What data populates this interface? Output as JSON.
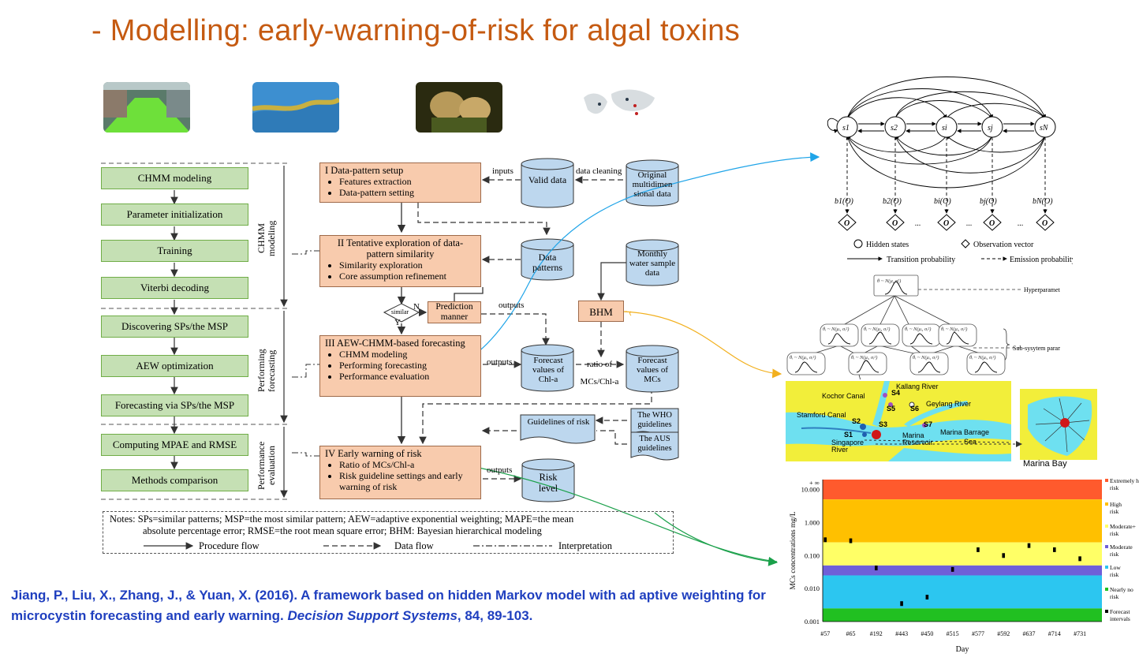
{
  "slide": {
    "title": "- Modelling: early-warning-of-risk for algal toxins"
  },
  "workflow": {
    "green_steps": [
      "CHMM modeling",
      "Parameter initialization",
      "Training",
      "Viterbi decoding",
      "Discovering SPs/the MSP",
      "AEW optimization",
      "Forecasting via SPs/the MSP",
      "Computing MPAE and RMSE",
      "Methods comparison"
    ],
    "side_labels": {
      "chmm": "CHMM modeling",
      "forecasting": "Performing forecasting",
      "evaluation": "Performance evaluation"
    },
    "stages": {
      "s1": {
        "heading": "I  Data-pattern setup",
        "items": [
          "Features extraction",
          "Data-pattern setting"
        ]
      },
      "s2": {
        "heading": "II  Tentative exploration of data-pattern similarity",
        "items": [
          "Similarity exploration",
          "Core assumption refinement"
        ]
      },
      "s3": {
        "heading": "III  AEW-CHMM-based forecasting",
        "items": [
          "CHMM modeling",
          "Performing forecasting",
          "Performance evaluation"
        ]
      },
      "s4": {
        "heading": "IV  Early warning of risk",
        "items": [
          "Ratio of MCs/Chl-a",
          "Risk guideline settings and early warning of risk"
        ]
      }
    },
    "datastores": {
      "valid": "Valid data",
      "original": "Original multidimen sional data",
      "patterns": "Data patterns",
      "monthly": "Monthly water sample data",
      "chl": "Forecast values of Chl-a",
      "mcs": "Forecast values of MCs",
      "risk": "Risk level"
    },
    "other": {
      "prediction": "Prediction manner",
      "bhm": "BHM",
      "similar": "similar",
      "n": "N",
      "y": "Y",
      "inputs": "inputs",
      "data_cleaning": "data cleaning",
      "outputs": "outputs",
      "ratio": "ratio of MCs/Chl-a",
      "guidelines": "Guidelines of risk",
      "who": "The WHO guidelines",
      "aus": "The AUS guidelines"
    },
    "notes": {
      "line1": "Notes: SPs=similar patterns; MSP=the most similar pattern; AEW=adaptive exponential weighting; MAPE=the mean",
      "line2": "absolute percentage error;  RMSE=the root mean square error; BHM: Bayesian hierarchical modeling",
      "procedure": "Procedure flow",
      "data": "Data flow",
      "interp": "Interpretation"
    }
  },
  "hmm": {
    "states": [
      "s1",
      "s2",
      "si",
      "sj",
      "sN"
    ],
    "legend_hidden": "Hidden states",
    "legend_obs": "Observation vector",
    "legend_trans": "Transition probability",
    "legend_emit": "Emission probability",
    "emissions": [
      "b1(O)",
      "b2(O)",
      "bi(O)",
      "bj(O)",
      "bN(O)"
    ],
    "obs": "O",
    "dots": "..."
  },
  "bhm_tree": {
    "root": "θ ~ N(μ, σ²)",
    "hyper": "Hyperparameter prior",
    "sub": "Sub-sysytem parameter",
    "node": "θᵢ ~ N(μᵢ, σᵢ²)"
  },
  "map": {
    "labels": [
      "Kallang River",
      "Kochor Canal",
      "Geylang River",
      "Stamford Canal",
      "Marina Barrage",
      "Marina Reservoir",
      "Singapore River",
      "Sea"
    ],
    "sites": [
      "S1",
      "S2",
      "S3",
      "S4",
      "S5",
      "S6",
      "S7"
    ],
    "bay": "Marina Bay"
  },
  "chart_data": {
    "type": "scatter",
    "ylabel": "MCs concentrations  mg/L",
    "xlabel": "Day",
    "yscale": "log",
    "y_ticks": [
      "+ ∞",
      "10.000",
      "1.000",
      "0.100",
      "0.010",
      "0.001"
    ],
    "categories": [
      "#57",
      "#65",
      "#192",
      "#443",
      "#450",
      "#515",
      "#577",
      "#592",
      "#637",
      "#714",
      "#731"
    ],
    "values": [
      0.3,
      0.28,
      0.042,
      0.0035,
      0.0055,
      0.038,
      0.15,
      0.1,
      0.2,
      0.15,
      0.08
    ],
    "bands": [
      {
        "name": "Extremely high risk",
        "color": "#ff5a2d"
      },
      {
        "name": "High risk",
        "color": "#ffc000"
      },
      {
        "name": "Moderate+ risk",
        "color": "#ffff66"
      },
      {
        "name": "Moderate risk",
        "color": "#6f5fd8"
      },
      {
        "name": "Low risk",
        "color": "#2cc6f0"
      },
      {
        "name": "Nearly no risk",
        "color": "#21c021"
      },
      {
        "name": "Forecast intervals",
        "color": "#000000"
      }
    ]
  },
  "citation": {
    "authors": "Jiang, P., Liu, X., Zhang, J., & Yuan, X. (2016). A framework based on hidden Markov model with ad aptive weighting for microcystin forecasting and early warning.",
    "journal": "Decision Support Systems",
    "rest": ", 84, 89-103."
  },
  "colors": {
    "title": "#c55a11",
    "citation": "#1f3fbf",
    "green_box": "#c5e0b4",
    "orange_box": "#f8cbad",
    "cylinder": "#bdd7ee",
    "arrow_blue": "#1fa4e8",
    "arrow_orange": "#f2b01e",
    "arrow_green": "#1aa04a"
  }
}
